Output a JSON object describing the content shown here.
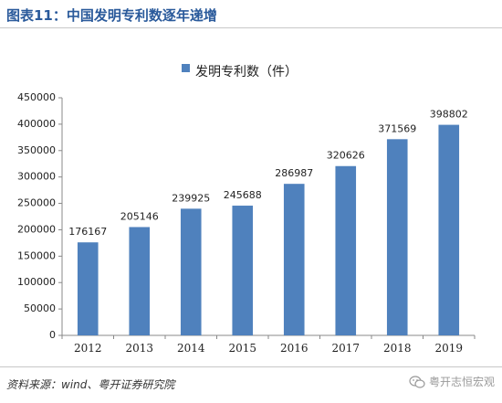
{
  "header": {
    "title": "图表11：中国发明专利数逐年递增"
  },
  "chart_data": {
    "type": "bar",
    "categories": [
      "2012",
      "2013",
      "2014",
      "2015",
      "2016",
      "2017",
      "2018",
      "2019"
    ],
    "series": [
      {
        "name": "发明专利数（件）",
        "values": [
          176167,
          205146,
          239925,
          245688,
          286987,
          320626,
          371569,
          398802
        ]
      }
    ],
    "data_labels": [
      "176167",
      "205146",
      "239925",
      "245688",
      "286987",
      "320626",
      "371569",
      "398802"
    ],
    "y_ticks": [
      "0",
      "50000",
      "100000",
      "150000",
      "200000",
      "250000",
      "300000",
      "350000",
      "400000",
      "450000"
    ],
    "ylim": [
      0,
      450000
    ],
    "bar_color": "#4f81bd",
    "grid": false,
    "legend_position": "top"
  },
  "footer": {
    "source": "资料来源：wind、粤开证券研究院",
    "watermark": "粤开志恒宏观",
    "watermark_icon": "wechat-icon"
  }
}
